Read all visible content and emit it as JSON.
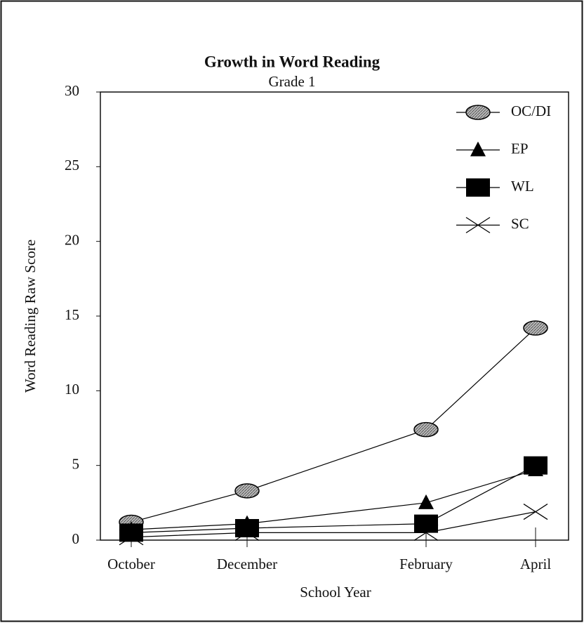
{
  "chart_data": {
    "type": "line",
    "title": "Growth in Word Reading",
    "subtitle": "Grade 1",
    "x_label": "School Year",
    "y_label": "Word Reading Raw Score",
    "categories": [
      "October",
      "December",
      "February",
      "April"
    ],
    "series": [
      {
        "name": "OC/DI",
        "color": "#000000",
        "marker": "ellipse",
        "values": [
          1.2,
          3.3,
          7.4,
          14.2
        ]
      },
      {
        "name": "EP",
        "color": "#000000",
        "marker": "triangle",
        "values": [
          0.7,
          1.1,
          2.5,
          4.7
        ]
      },
      {
        "name": "WL",
        "color": "#000000",
        "marker": "square",
        "values": [
          0.5,
          0.8,
          1.1,
          5.0
        ]
      },
      {
        "name": "SC",
        "color": "#000000",
        "marker": "cross",
        "values": [
          0.2,
          0.5,
          0.5,
          1.9
        ]
      }
    ],
    "ylim": [
      0,
      30
    ],
    "yticks": [
      0,
      5,
      10,
      15,
      20,
      25,
      30
    ],
    "grid": false,
    "legend": "upper right"
  }
}
